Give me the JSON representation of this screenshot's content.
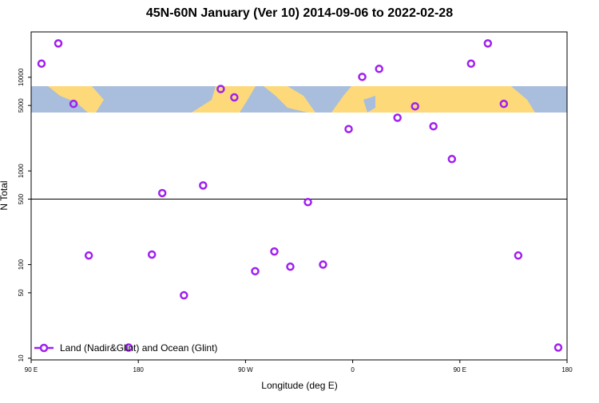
{
  "chart_data": {
    "type": "scatter",
    "title": "45N-60N January (Ver 10)   2014-09-06 to 2022-02-28",
    "x_label": "Longitude (deg E)",
    "y_label": "N Total",
    "log_y": true,
    "grid": false,
    "legend_position": "bottomleft",
    "hline": 500,
    "xlim": [
      90,
      540
    ],
    "xticks": [
      {
        "value": 90,
        "label": "90 E"
      },
      {
        "value": 180,
        "label": "180"
      },
      {
        "value": 270,
        "label": "90 W"
      },
      {
        "value": 360,
        "label": "0"
      },
      {
        "value": 450,
        "label": "90 E"
      },
      {
        "value": 540,
        "label": "180"
      }
    ],
    "ylim": [
      9.6,
      30500
    ],
    "yticks": [
      10,
      50,
      100,
      500,
      1000,
      5000,
      10000
    ],
    "series": [
      {
        "name": "Land (Nadir&Glint) and Ocean (Glint)",
        "color": "#a020f0",
        "x": [
          98.7,
          112.8,
          125.6,
          138.4,
          171.9,
          191.4,
          200.1,
          218.3,
          234.4,
          249.2,
          260.6,
          278.1,
          294.2,
          307.6,
          322.4,
          335.1,
          356.6,
          368.0,
          382.2,
          397.6,
          412.4,
          427.8,
          443.3,
          459.4,
          473.5,
          486.9,
          499.0,
          532.6
        ],
        "values": [
          14000,
          23000,
          5200,
          125,
          13,
          128,
          580,
          47,
          700,
          7500,
          6100,
          85,
          138,
          95,
          465,
          100,
          2800,
          10100,
          12300,
          3700,
          4900,
          3000,
          1340,
          14000,
          23000,
          5200,
          125,
          13
        ]
      }
    ]
  }
}
